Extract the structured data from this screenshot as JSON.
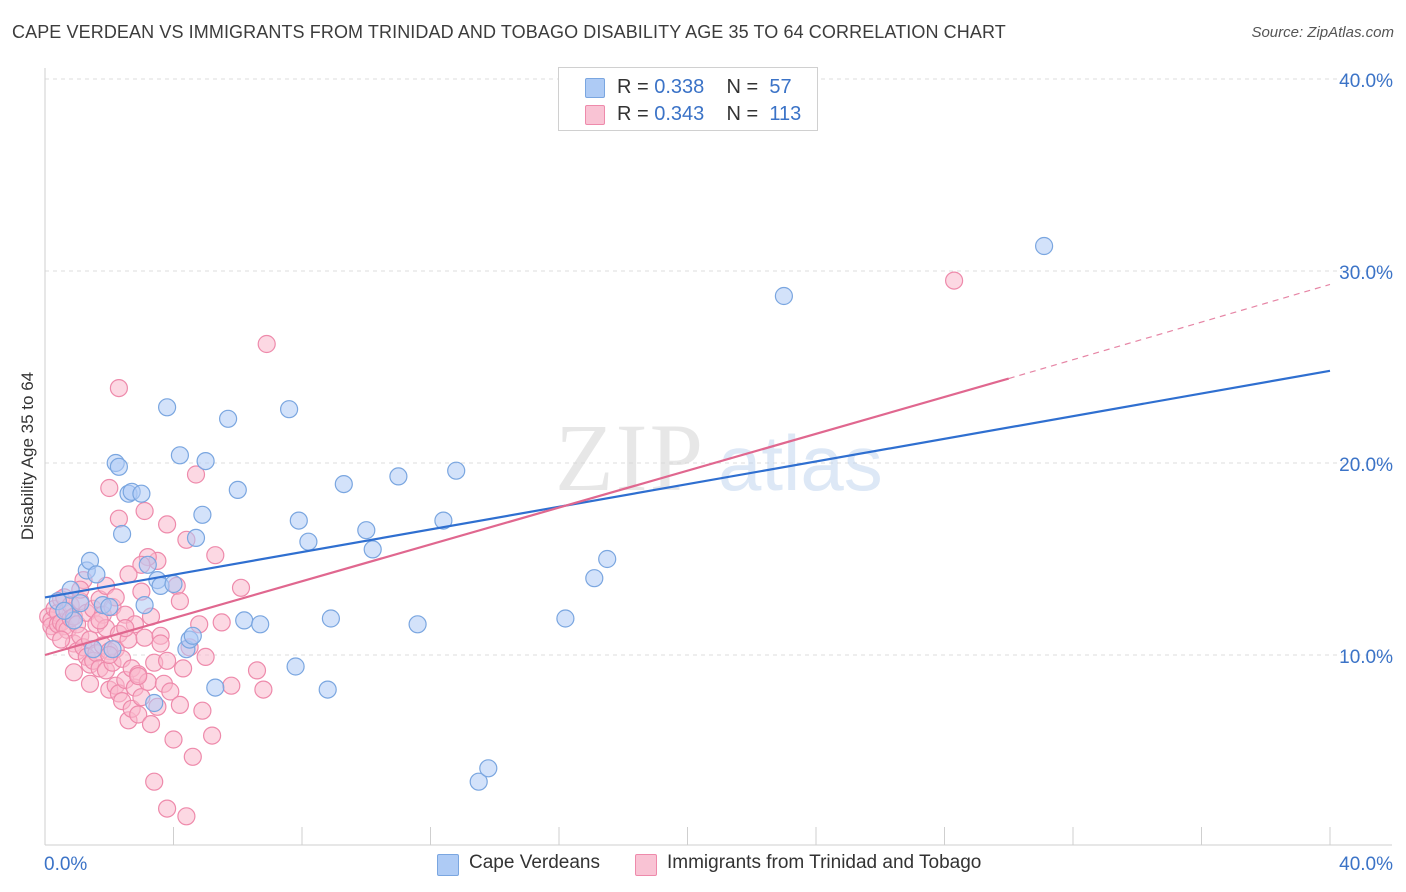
{
  "title": "CAPE VERDEAN VS IMMIGRANTS FROM TRINIDAD AND TOBAGO DISABILITY AGE 35 TO 64 CORRELATION CHART",
  "source": "Source: ZipAtlas.com",
  "watermark": {
    "zip": "ZIP",
    "atlas": "atlas"
  },
  "legend": {
    "r_label": "R =",
    "n_label": "N =",
    "rows": [
      {
        "r": "0.338",
        "n": "57"
      },
      {
        "r": "0.343",
        "n": "113"
      }
    ]
  },
  "colors": {
    "blue_fill": "#aecbf5",
    "blue_stroke": "#7aa6e0",
    "blue_line": "#2f6fd0",
    "pink_fill": "#f9b8cc",
    "pink_stroke": "#ee8aab",
    "pink_line": "#e0678f",
    "tick_blue": "#3b73c7",
    "grid": "#dedede"
  },
  "chart_data": {
    "type": "scatter",
    "title": "CAPE VERDEAN VS IMMIGRANTS FROM TRINIDAD AND TOBAGO DISABILITY AGE 35 TO 64 CORRELATION CHART",
    "xlabel": "",
    "ylabel": "Disability Age 35 to 64",
    "xlim": [
      0,
      40
    ],
    "ylim": [
      0,
      40
    ],
    "x_tick_labels": [
      "0.0%",
      "40.0%"
    ],
    "y_tick_labels": [
      "10.0%",
      "20.0%",
      "30.0%",
      "40.0%"
    ],
    "y_ticks": [
      10,
      20,
      30,
      40
    ],
    "grid": true,
    "legend_position": "top-center",
    "series": [
      {
        "name": "Cape Verdeans",
        "color": "#7aa6e0",
        "trend": {
          "x": [
            0,
            40
          ],
          "y": [
            13.0,
            24.8
          ]
        },
        "points": [
          [
            0.4,
            12.8
          ],
          [
            0.8,
            13.4
          ],
          [
            1.1,
            12.7
          ],
          [
            1.3,
            14.4
          ],
          [
            1.4,
            14.9
          ],
          [
            1.6,
            14.2
          ],
          [
            0.9,
            11.8
          ],
          [
            1.8,
            12.6
          ],
          [
            2.0,
            12.5
          ],
          [
            2.2,
            20.0
          ],
          [
            2.3,
            19.8
          ],
          [
            2.4,
            16.3
          ],
          [
            2.6,
            18.4
          ],
          [
            2.7,
            18.5
          ],
          [
            3.1,
            12.6
          ],
          [
            3.2,
            14.7
          ],
          [
            3.5,
            13.9
          ],
          [
            3.6,
            13.6
          ],
          [
            3.8,
            22.9
          ],
          [
            4.0,
            13.7
          ],
          [
            4.2,
            20.4
          ],
          [
            4.4,
            10.3
          ],
          [
            4.5,
            10.8
          ],
          [
            4.7,
            16.1
          ],
          [
            4.9,
            17.3
          ],
          [
            5.0,
            20.1
          ],
          [
            5.3,
            8.3
          ],
          [
            5.7,
            22.3
          ],
          [
            6.0,
            18.6
          ],
          [
            6.2,
            11.8
          ],
          [
            6.7,
            11.6
          ],
          [
            7.6,
            22.8
          ],
          [
            7.8,
            9.4
          ],
          [
            7.9,
            17.0
          ],
          [
            8.2,
            15.9
          ],
          [
            8.8,
            8.2
          ],
          [
            8.9,
            11.9
          ],
          [
            9.3,
            18.9
          ],
          [
            10.0,
            16.5
          ],
          [
            10.2,
            15.5
          ],
          [
            11.0,
            19.3
          ],
          [
            11.6,
            11.6
          ],
          [
            12.4,
            17.0
          ],
          [
            12.8,
            19.6
          ],
          [
            13.5,
            3.4
          ],
          [
            13.8,
            4.1
          ],
          [
            16.2,
            11.9
          ],
          [
            17.1,
            14.0
          ],
          [
            17.5,
            15.0
          ],
          [
            23.0,
            28.7
          ],
          [
            31.1,
            31.3
          ],
          [
            3.0,
            18.4
          ],
          [
            1.5,
            10.3
          ],
          [
            3.4,
            7.5
          ],
          [
            2.1,
            10.3
          ],
          [
            4.6,
            11.0
          ],
          [
            0.6,
            12.3
          ]
        ]
      },
      {
        "name": "Immigrants from Trinidad and Tobago",
        "color": "#ee8aab",
        "trend": {
          "x": [
            0,
            30.0
          ],
          "y": [
            10.0,
            24.4
          ],
          "dashed_to": {
            "x": 40,
            "y": 29.3
          }
        },
        "points": [
          [
            0.1,
            12.0
          ],
          [
            0.2,
            11.8
          ],
          [
            0.2,
            11.5
          ],
          [
            0.3,
            12.4
          ],
          [
            0.3,
            11.2
          ],
          [
            0.4,
            12.2
          ],
          [
            0.4,
            11.6
          ],
          [
            0.5,
            12.9
          ],
          [
            0.5,
            11.7
          ],
          [
            0.6,
            13.0
          ],
          [
            0.6,
            11.5
          ],
          [
            0.7,
            12.3
          ],
          [
            0.7,
            11.3
          ],
          [
            0.8,
            12.6
          ],
          [
            0.8,
            11.9
          ],
          [
            0.9,
            10.6
          ],
          [
            0.9,
            12.0
          ],
          [
            1.0,
            11.6
          ],
          [
            1.0,
            10.2
          ],
          [
            1.1,
            12.8
          ],
          [
            1.1,
            11.0
          ],
          [
            1.2,
            13.9
          ],
          [
            1.2,
            10.4
          ],
          [
            1.3,
            9.9
          ],
          [
            1.3,
            12.2
          ],
          [
            1.4,
            9.5
          ],
          [
            1.4,
            10.8
          ],
          [
            1.5,
            12.4
          ],
          [
            1.5,
            9.7
          ],
          [
            1.6,
            11.6
          ],
          [
            1.6,
            10.1
          ],
          [
            1.7,
            12.9
          ],
          [
            1.7,
            9.3
          ],
          [
            1.8,
            10.5
          ],
          [
            1.8,
            12.1
          ],
          [
            1.9,
            9.2
          ],
          [
            1.9,
            11.4
          ],
          [
            2.0,
            10.2
          ],
          [
            2.0,
            8.2
          ],
          [
            2.1,
            12.5
          ],
          [
            2.1,
            9.6
          ],
          [
            2.2,
            8.4
          ],
          [
            2.2,
            10.3
          ],
          [
            2.3,
            11.1
          ],
          [
            2.3,
            8.0
          ],
          [
            2.4,
            9.8
          ],
          [
            2.4,
            7.6
          ],
          [
            2.5,
            12.1
          ],
          [
            2.5,
            8.7
          ],
          [
            2.6,
            6.6
          ],
          [
            2.6,
            10.8
          ],
          [
            2.7,
            7.2
          ],
          [
            2.7,
            9.3
          ],
          [
            2.8,
            8.3
          ],
          [
            2.8,
            11.6
          ],
          [
            2.9,
            6.9
          ],
          [
            2.9,
            9.0
          ],
          [
            3.0,
            13.3
          ],
          [
            3.0,
            7.8
          ],
          [
            3.1,
            10.9
          ],
          [
            3.2,
            8.6
          ],
          [
            3.3,
            6.4
          ],
          [
            3.3,
            12.0
          ],
          [
            3.4,
            9.6
          ],
          [
            3.5,
            7.3
          ],
          [
            3.5,
            14.9
          ],
          [
            3.6,
            11.0
          ],
          [
            3.7,
            8.5
          ],
          [
            3.8,
            9.7
          ],
          [
            3.8,
            16.8
          ],
          [
            3.9,
            8.1
          ],
          [
            4.0,
            5.6
          ],
          [
            4.1,
            13.6
          ],
          [
            4.2,
            7.4
          ],
          [
            4.3,
            9.3
          ],
          [
            4.4,
            16.0
          ],
          [
            4.5,
            10.4
          ],
          [
            4.6,
            4.7
          ],
          [
            4.7,
            19.4
          ],
          [
            4.8,
            11.6
          ],
          [
            4.9,
            7.1
          ],
          [
            5.0,
            9.9
          ],
          [
            5.2,
            5.8
          ],
          [
            5.3,
            15.2
          ],
          [
            5.5,
            11.7
          ],
          [
            5.8,
            8.4
          ],
          [
            6.1,
            13.5
          ],
          [
            6.6,
            9.2
          ],
          [
            6.8,
            8.2
          ],
          [
            6.9,
            26.2
          ],
          [
            3.4,
            3.4
          ],
          [
            3.8,
            2.0
          ],
          [
            4.4,
            1.6
          ],
          [
            2.3,
            23.9
          ],
          [
            2.0,
            18.7
          ],
          [
            2.3,
            17.1
          ],
          [
            3.1,
            17.5
          ],
          [
            3.2,
            15.1
          ],
          [
            3.0,
            14.7
          ],
          [
            2.6,
            14.2
          ],
          [
            1.9,
            13.6
          ],
          [
            2.5,
            11.4
          ],
          [
            1.1,
            13.4
          ],
          [
            2.0,
            10.0
          ],
          [
            2.9,
            8.9
          ],
          [
            1.7,
            11.8
          ],
          [
            3.6,
            10.6
          ],
          [
            4.2,
            12.8
          ],
          [
            1.4,
            8.5
          ],
          [
            0.9,
            9.1
          ],
          [
            2.2,
            13.0
          ],
          [
            28.3,
            29.5
          ],
          [
            0.5,
            10.8
          ]
        ]
      }
    ]
  }
}
